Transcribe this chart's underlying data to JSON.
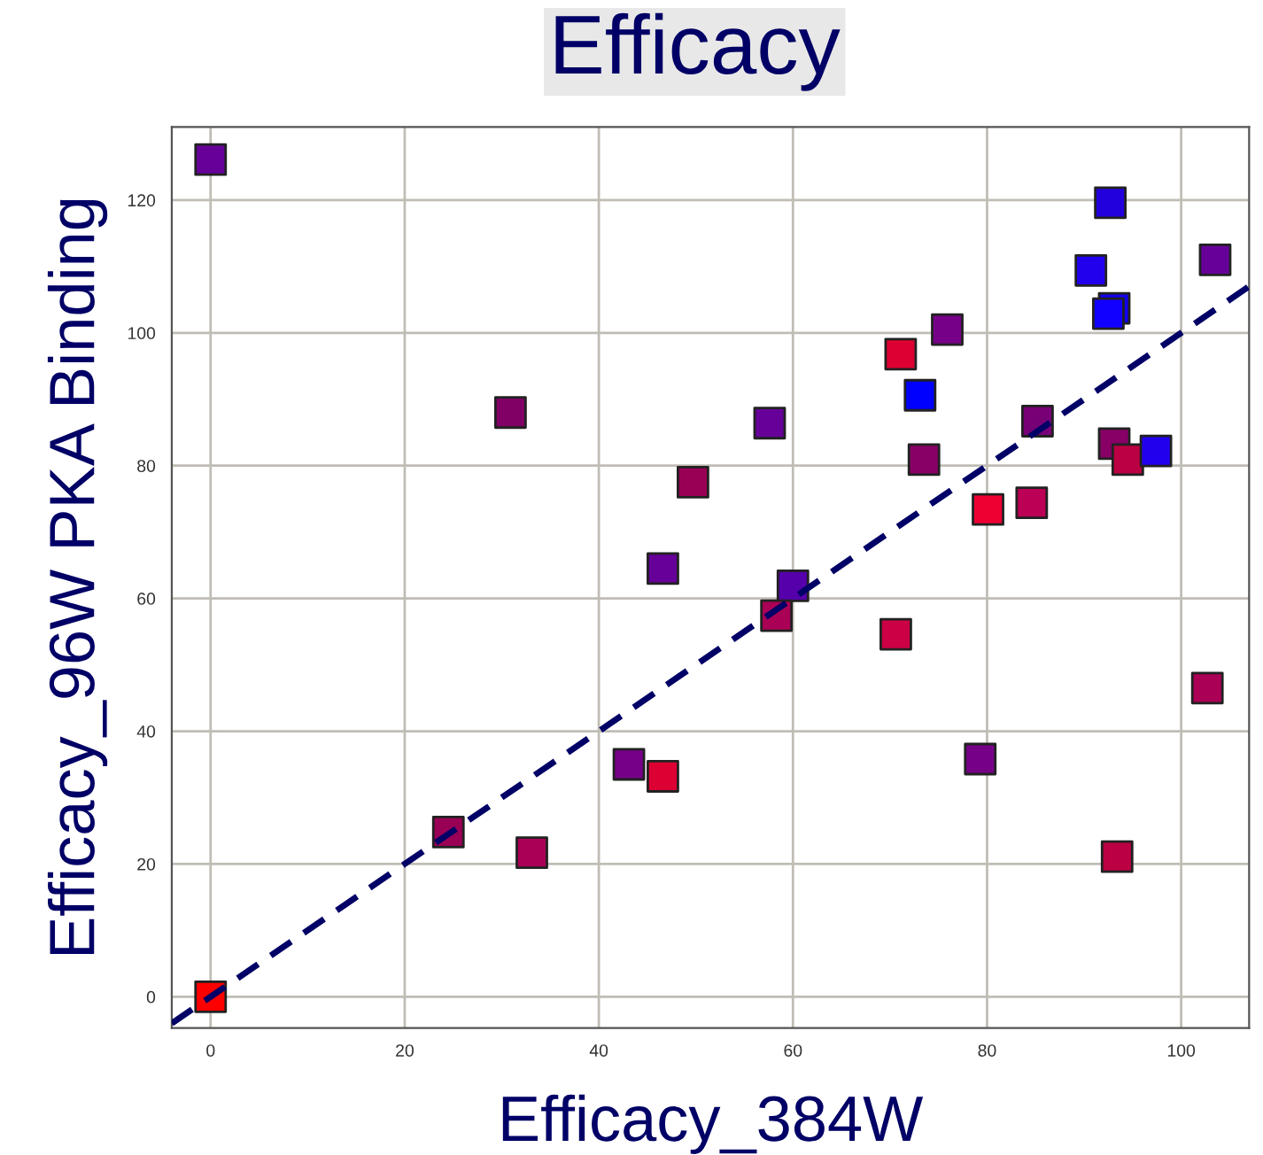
{
  "chart_data": {
    "type": "scatter",
    "title": "Efficacy",
    "xlabel": "Efficacy_384W",
    "ylabel": "Efficacy_96W PKA Binding",
    "xlim": [
      -4,
      107
    ],
    "ylim": [
      -4.7,
      131
    ],
    "xticks": [
      0,
      20,
      40,
      60,
      80,
      100
    ],
    "yticks": [
      0,
      20,
      40,
      60,
      80,
      100,
      120
    ],
    "grid": true,
    "legend": false,
    "series": [
      {
        "marker": "square",
        "x": [
          0,
          30.9,
          57.6,
          49.7,
          46.6,
          60,
          58.3,
          43.1,
          46.6,
          24.5,
          33.1,
          0,
          71.1,
          75.9,
          73.1,
          73.5,
          85.2,
          80.1,
          84.6,
          92.7,
          90.7,
          93.1,
          92.5,
          103.5,
          93.1,
          94.5,
          97.4,
          70.6,
          102.7,
          79.3,
          93.4
        ],
        "values": [
          126.1,
          88.0,
          86.4,
          77.5,
          64.5,
          61.9,
          57.4,
          35,
          33.2,
          24.8,
          21.7,
          0,
          96.8,
          100.5,
          90.6,
          80.9,
          86.7,
          73.4,
          74.4,
          119.6,
          109.4,
          103.7,
          102.9,
          111,
          83.3,
          80.9,
          82.2,
          54.6,
          46.5,
          35.8,
          21.1
        ],
        "colors": [
          "#660099",
          "#800066",
          "#660099",
          "#990055",
          "#660099",
          "#5500aa",
          "#aa0055",
          "#770088",
          "#dd0033",
          "#990055",
          "#aa0055",
          "#ff0000",
          "#dd0033",
          "#770088",
          "#0000ff",
          "#880066",
          "#770077",
          "#ee0033",
          "#bb0055",
          "#2200dd",
          "#2200ee",
          "#1100ee",
          "#1100ff",
          "#660099",
          "#880066",
          "#bb0044",
          "#2200ee",
          "#cc0044",
          "#aa0055",
          "#770088",
          "#bb0044"
        ]
      },
      {
        "type": "line",
        "x": [
          -4,
          107
        ],
        "values": [
          -4,
          107
        ],
        "color": "#000066",
        "line_style": "dashed"
      }
    ]
  }
}
